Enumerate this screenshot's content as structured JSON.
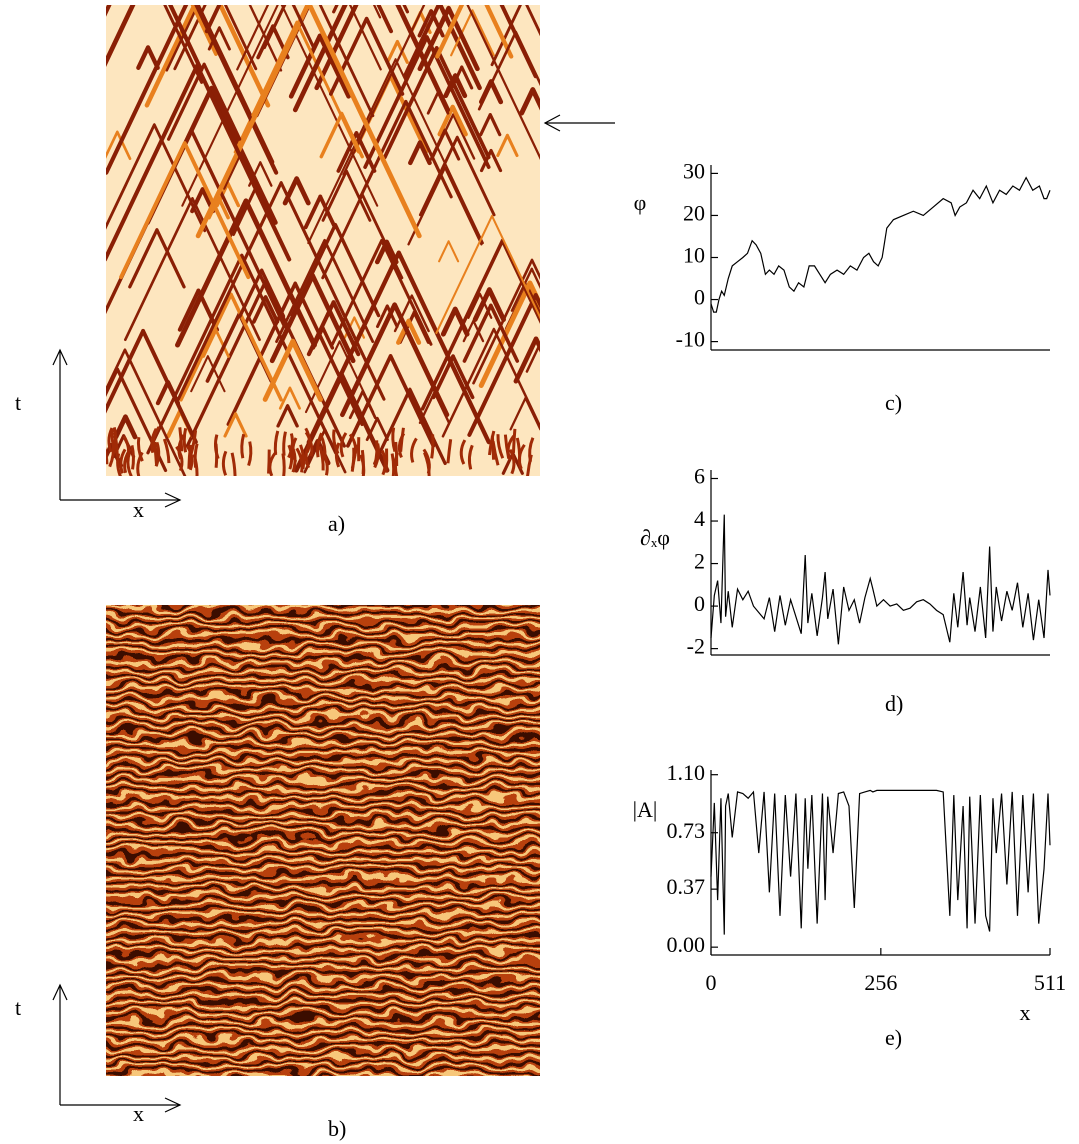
{
  "panels": [
    {
      "label": "a)",
      "t_label": "t",
      "x_label": "x"
    },
    {
      "label": "b)",
      "t_label": "t",
      "x_label": "x"
    }
  ],
  "chart_data": [
    {
      "type": "line",
      "label": "c)",
      "ylabel": "φ",
      "color": "#000000",
      "x": [
        0,
        4,
        8,
        12,
        16,
        20,
        26,
        32,
        40,
        48,
        55,
        62,
        68,
        75,
        82,
        88,
        95,
        102,
        110,
        118,
        125,
        132,
        140,
        148,
        156,
        164,
        172,
        180,
        190,
        200,
        210,
        220,
        230,
        238,
        245,
        252,
        258,
        265,
        275,
        290,
        305,
        320,
        335,
        350,
        362,
        368,
        375,
        385,
        395,
        405,
        415,
        425,
        435,
        445,
        455,
        465,
        475,
        485,
        495,
        502,
        506,
        511
      ],
      "values": [
        -1,
        -3,
        -3,
        0,
        2,
        1,
        5,
        8,
        9,
        10,
        11,
        14,
        13,
        11,
        6,
        7,
        6,
        8,
        7,
        3,
        2,
        4,
        3,
        8,
        8,
        6,
        4,
        6,
        7,
        6,
        8,
        7,
        10,
        11,
        9,
        8,
        10,
        17,
        19,
        20,
        21,
        20,
        22,
        24,
        23,
        20,
        22,
        23,
        26,
        24,
        27,
        23,
        26,
        25,
        27,
        26,
        29,
        26,
        27,
        24,
        24,
        26
      ],
      "xlim": [
        0,
        511
      ],
      "ylim": [
        -12,
        32
      ],
      "yticks": [
        -10,
        0,
        10,
        20,
        30
      ]
    },
    {
      "type": "line",
      "label": "d)",
      "ylabel": "∂ₓφ",
      "color": "#000000",
      "x": [
        0,
        5,
        10,
        15,
        20,
        22,
        26,
        32,
        40,
        48,
        56,
        64,
        72,
        80,
        88,
        96,
        104,
        112,
        120,
        128,
        136,
        142,
        146,
        152,
        160,
        168,
        172,
        176,
        184,
        192,
        200,
        208,
        216,
        224,
        232,
        240,
        244,
        250,
        260,
        270,
        280,
        290,
        300,
        310,
        320,
        330,
        340,
        350,
        360,
        366,
        372,
        380,
        386,
        390,
        398,
        406,
        414,
        420,
        425,
        430,
        438,
        446,
        454,
        462,
        470,
        478,
        486,
        494,
        502,
        508,
        511
      ],
      "values": [
        -1.5,
        0.5,
        1.2,
        -0.8,
        4.3,
        -0.5,
        0.7,
        -1,
        0.8,
        0.3,
        0.7,
        0,
        -0.3,
        -0.6,
        0.4,
        -1.2,
        0.5,
        -0.9,
        0.3,
        -0.5,
        -1.3,
        2.4,
        -0.8,
        0.6,
        -1.4,
        0.4,
        1.6,
        -0.6,
        0.8,
        -1.8,
        0.9,
        -0.2,
        0.3,
        -0.8,
        0.4,
        1.3,
        0.8,
        0,
        0.3,
        0,
        0.1,
        -0.2,
        -0.1,
        0.2,
        0.3,
        0.1,
        -0.2,
        -0.4,
        -1.7,
        0.6,
        -1,
        1.6,
        -0.9,
        0.4,
        -1.2,
        0.9,
        -1.5,
        2.8,
        -1.2,
        0.9,
        -0.7,
        0.7,
        -0.2,
        1.1,
        -1,
        0.6,
        -1.6,
        0.3,
        -1.5,
        1.7,
        0.5
      ],
      "xlim": [
        0,
        511
      ],
      "ylim": [
        -2.3,
        6.4
      ],
      "yticks": [
        -2,
        0,
        2,
        4,
        6
      ]
    },
    {
      "type": "line",
      "label": "e)",
      "ylabel": "|A|",
      "xlabel": "x",
      "color": "#000000",
      "x": [
        0,
        5,
        10,
        15,
        20,
        22,
        26,
        32,
        40,
        48,
        56,
        64,
        72,
        80,
        88,
        96,
        104,
        112,
        120,
        128,
        136,
        142,
        146,
        152,
        160,
        168,
        172,
        176,
        184,
        192,
        200,
        208,
        216,
        224,
        232,
        240,
        244,
        250,
        260,
        270,
        280,
        290,
        300,
        310,
        320,
        330,
        340,
        350,
        360,
        366,
        372,
        380,
        386,
        390,
        398,
        406,
        414,
        420,
        425,
        430,
        438,
        446,
        454,
        462,
        470,
        478,
        486,
        494,
        502,
        508,
        511
      ],
      "values": [
        0.45,
        0.92,
        0.3,
        0.95,
        0.08,
        0.9,
        0.98,
        0.7,
        0.99,
        0.98,
        0.95,
        0.99,
        0.6,
        0.99,
        0.35,
        0.98,
        0.2,
        0.97,
        0.45,
        0.98,
        0.12,
        0.95,
        0.5,
        0.97,
        0.15,
        0.98,
        0.3,
        0.96,
        0.6,
        0.98,
        0.99,
        0.9,
        0.25,
        0.98,
        0.99,
        1.0,
        0.99,
        1.0,
        1.0,
        1.0,
        1.0,
        1.0,
        1.0,
        1.0,
        1.0,
        1.0,
        1.0,
        0.99,
        0.2,
        0.97,
        0.3,
        0.9,
        0.12,
        0.96,
        0.15,
        0.97,
        0.2,
        0.1,
        0.95,
        0.6,
        0.98,
        0.4,
        0.99,
        0.2,
        0.97,
        0.35,
        0.98,
        0.15,
        0.5,
        0.98,
        0.65
      ],
      "xlim": [
        0,
        511
      ],
      "ylim": [
        -0.05,
        1.13
      ],
      "xticks": [
        0,
        256,
        511
      ],
      "yticks": [
        {
          "value": 0,
          "label": "0.00"
        },
        {
          "value": 0.37,
          "label": "0.37"
        },
        {
          "value": 0.73,
          "label": "0.73"
        },
        {
          "value": 1.1,
          "label": "1.10"
        }
      ]
    }
  ]
}
